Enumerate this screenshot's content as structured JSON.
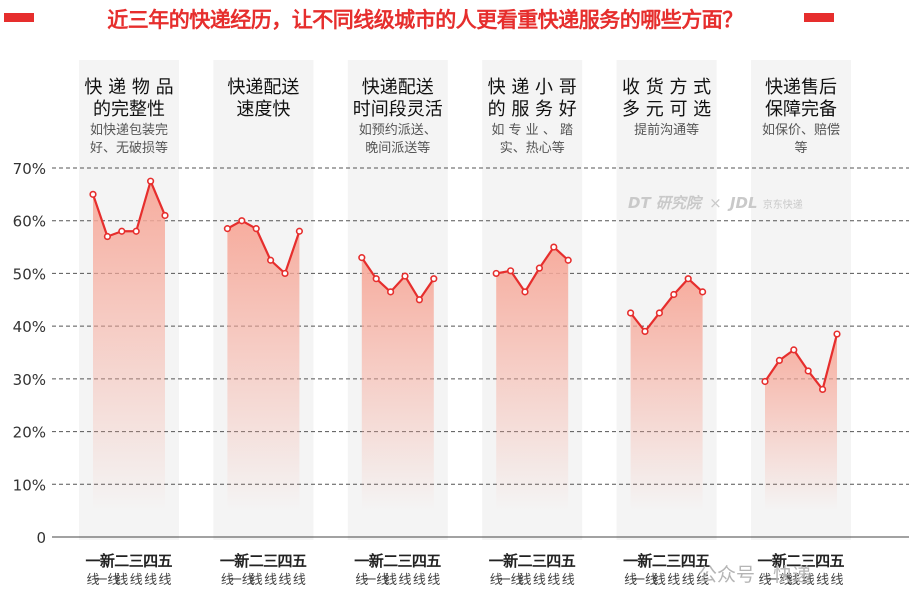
{
  "title": "近三年的快递经历，让不同线级城市的人更看重快递服务的哪些方面？",
  "colors": {
    "accent": "#e62e2d",
    "line": "#e62e2d",
    "fill_top": "#f7a99a",
    "panel_bg": "#f4f4f4",
    "grid": "#555555"
  },
  "watermarks": {
    "dt": "DT 研究院",
    "sep": "×",
    "jdl": "JDL",
    "jdl_sub": "京东快递",
    "bottom": "公众号 · 快递"
  },
  "chart_data": {
    "type": "line",
    "title": "近三年的快递经历，让不同线级城市的人更看重快递服务的哪些方面？",
    "ylim": [
      0,
      70
    ],
    "yticks": [
      0,
      10,
      20,
      30,
      40,
      50,
      60,
      70
    ],
    "ytick_labels": [
      "0",
      "10%",
      "20%",
      "30%",
      "40%",
      "50%",
      "60%",
      "70%"
    ],
    "grid": "horizontal dashed",
    "x_labels": [
      {
        "top": "一",
        "bottom": "线"
      },
      {
        "top": "新",
        "bottom": "一线"
      },
      {
        "top": "二",
        "bottom": "线"
      },
      {
        "top": "三",
        "bottom": "线"
      },
      {
        "top": "四",
        "bottom": "线"
      },
      {
        "top": "五",
        "bottom": "线"
      }
    ],
    "groups": [
      {
        "title": [
          "快 递 物 品",
          "的完整性"
        ],
        "subtitle": [
          "如快递包装完",
          "好、无破损等"
        ],
        "values": [
          65,
          57,
          58,
          58,
          67.5,
          61
        ]
      },
      {
        "title": [
          "快递配送",
          "速度快"
        ],
        "subtitle": [],
        "values": [
          58.5,
          60,
          58.5,
          52.5,
          50,
          58
        ]
      },
      {
        "title": [
          "快递配送",
          "时间段灵活"
        ],
        "subtitle": [
          "如预约派送、",
          "晚间派送等"
        ],
        "values": [
          53,
          49,
          46.5,
          49.5,
          45,
          49
        ]
      },
      {
        "title": [
          "快 递 小 哥",
          "的 服 务 好"
        ],
        "subtitle": [
          "如 专 业 、 踏",
          "实、热心等"
        ],
        "values": [
          50,
          50.5,
          46.5,
          51,
          55,
          52.5
        ]
      },
      {
        "title": [
          "收 货 方 式",
          "多 元 可 选"
        ],
        "subtitle": [
          "提前沟通等"
        ],
        "values": [
          42.5,
          39,
          42.5,
          46,
          49,
          46.5
        ]
      },
      {
        "title": [
          "快递售后",
          "保障完备"
        ],
        "subtitle": [
          "如保价、赔偿",
          "等"
        ],
        "values": [
          29.5,
          33.5,
          35.5,
          31.5,
          28,
          38.5
        ]
      }
    ]
  }
}
